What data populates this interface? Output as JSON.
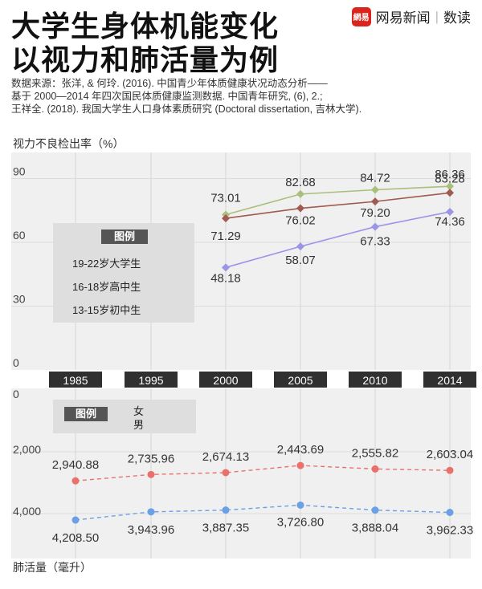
{
  "header": {
    "title_line1": "大学生身体机能变化",
    "title_line2": "以视力和肺活量为例",
    "brand_logo": "網易",
    "brand_name": "网易新闻",
    "brand_separator": "|",
    "brand_sub": "数读"
  },
  "source": [
    "数据来源：张洋, & 何玲. (2016). 中国青少年体质健康状况动态分析——",
    "基于 2000—2014 年四次国民体质健康监测数据. 中国青年研究, (6), 2.;",
    "王祥全. (2018). 我国大学生人口身体素质研究 (Doctoral dissertation, 吉林大学)."
  ],
  "chart_data": [
    {
      "type": "line",
      "ylabel": "视力不良检出率（%）",
      "ylim": [
        0,
        100
      ],
      "yticks": [
        "0",
        "30",
        "60",
        "90"
      ],
      "categories": [
        "1985",
        "1995",
        "2000",
        "2005",
        "2010",
        "2014"
      ],
      "legend_title": "图例",
      "series": [
        {
          "name": "19-22岁大学生",
          "color": "#a9bf7b",
          "values": [
            null,
            null,
            73.01,
            82.68,
            84.72,
            86.36
          ],
          "labels": [
            "",
            "",
            "73.01",
            "82.68",
            "84.72",
            "86.36"
          ]
        },
        {
          "name": "16-18岁高中生",
          "color": "#a05a50",
          "values": [
            null,
            null,
            71.29,
            76.02,
            79.2,
            83.28
          ],
          "labels": [
            "",
            "",
            "71.29",
            "76.02",
            "79.20",
            "83.28"
          ]
        },
        {
          "name": "13-15岁初中生",
          "color": "#9b95e6",
          "values": [
            null,
            null,
            48.18,
            58.07,
            67.33,
            74.36
          ],
          "labels": [
            "",
            "",
            "48.18",
            "58.07",
            "67.33",
            "74.36"
          ]
        }
      ]
    },
    {
      "type": "line",
      "ylabel": "肺活量（毫升）",
      "ylim": [
        0,
        5000
      ],
      "yticks": [
        "0",
        "2,000",
        "4,000"
      ],
      "inverted": true,
      "categories": [
        "1985",
        "1995",
        "2000",
        "2005",
        "2010",
        "2014"
      ],
      "legend_title": "图例",
      "series": [
        {
          "name": "女",
          "color": "#e8716b",
          "values": [
            2940.88,
            2735.96,
            2674.13,
            2443.69,
            2555.82,
            2603.04
          ],
          "labels": [
            "2,940.88",
            "2,735.96",
            "2,674.13",
            "2,443.69",
            "2,555.82",
            "2,603.04"
          ]
        },
        {
          "name": "男",
          "color": "#6b9fe6",
          "values": [
            4208.5,
            3943.96,
            3887.35,
            3726.8,
            3888.04,
            3962.33
          ],
          "labels": [
            "4,208.50",
            "3,943.96",
            "3,887.35",
            "3,726.80",
            "3,888.04",
            "3,962.33"
          ]
        }
      ]
    }
  ]
}
